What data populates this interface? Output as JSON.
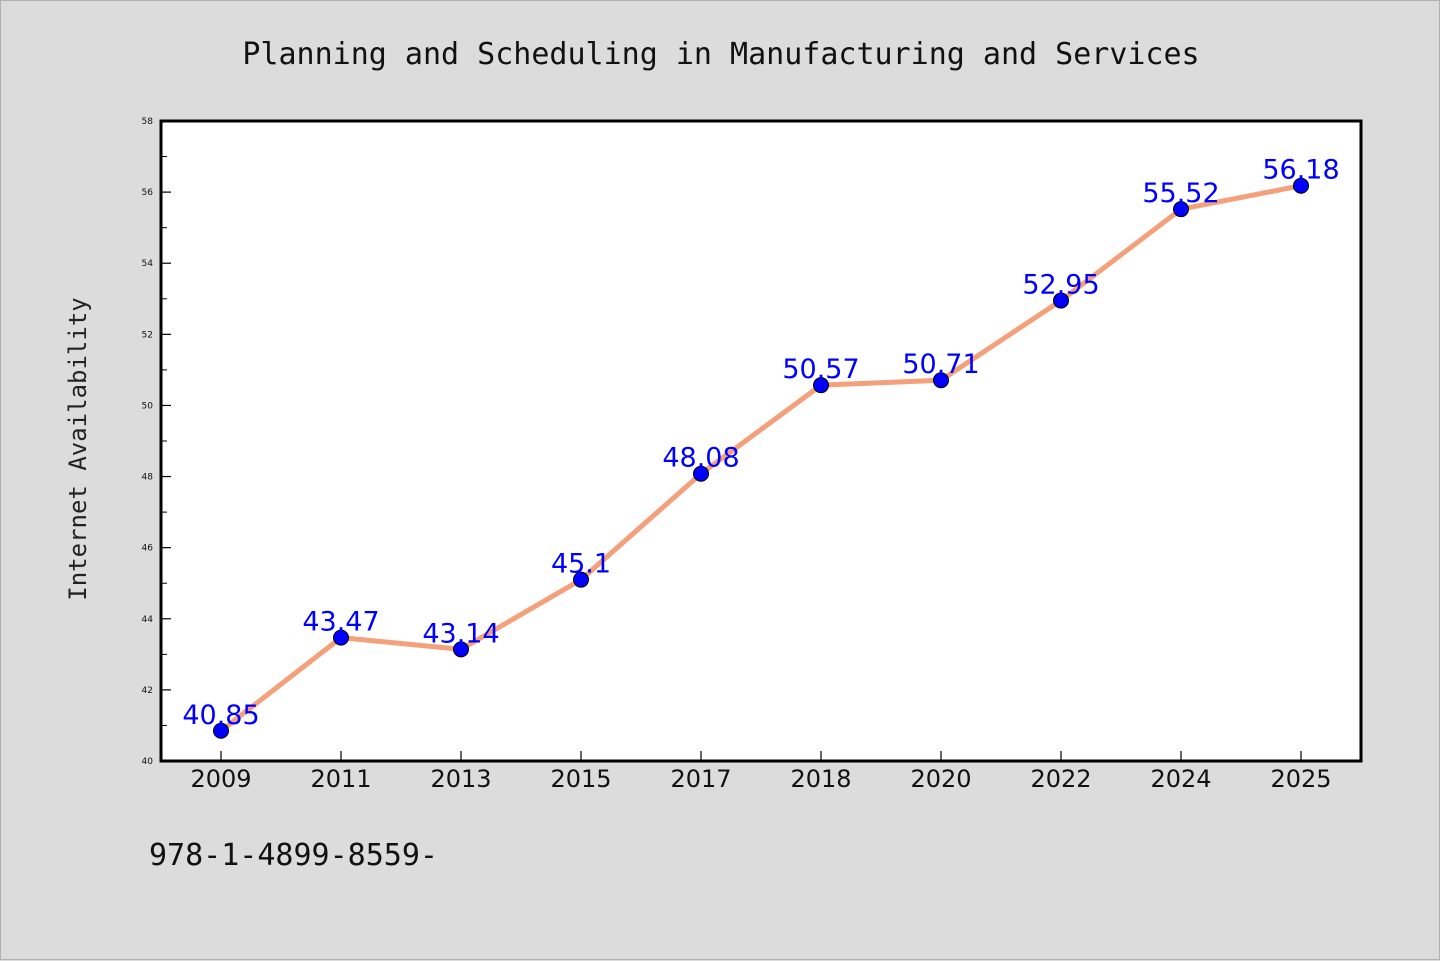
{
  "chart_data": {
    "type": "line",
    "title": "Planning and Scheduling in Manufacturing and Services",
    "xlabel": "",
    "ylabel": "Internet Availability",
    "categories": [
      "2009",
      "2011",
      "2013",
      "2015",
      "2017",
      "2018",
      "2020",
      "2022",
      "2024",
      "2025"
    ],
    "values": [
      40.85,
      43.47,
      43.14,
      45.1,
      48.08,
      50.57,
      50.71,
      52.95,
      55.52,
      56.18
    ],
    "data_labels": [
      "40.85",
      "43.47",
      "43.14",
      "45.1",
      "48.08",
      "50.57",
      "50.71",
      "52.95",
      "55.52",
      "56.18"
    ],
    "ylim": [
      40,
      58
    ],
    "yticks": [
      40,
      42,
      44,
      46,
      48,
      50,
      52,
      54,
      56,
      58
    ],
    "grid": false,
    "line_color": "#f4a07a",
    "marker_color": "#0000ff",
    "label_color": "#0000ff"
  },
  "footnote": "978-1-4899-8559-"
}
